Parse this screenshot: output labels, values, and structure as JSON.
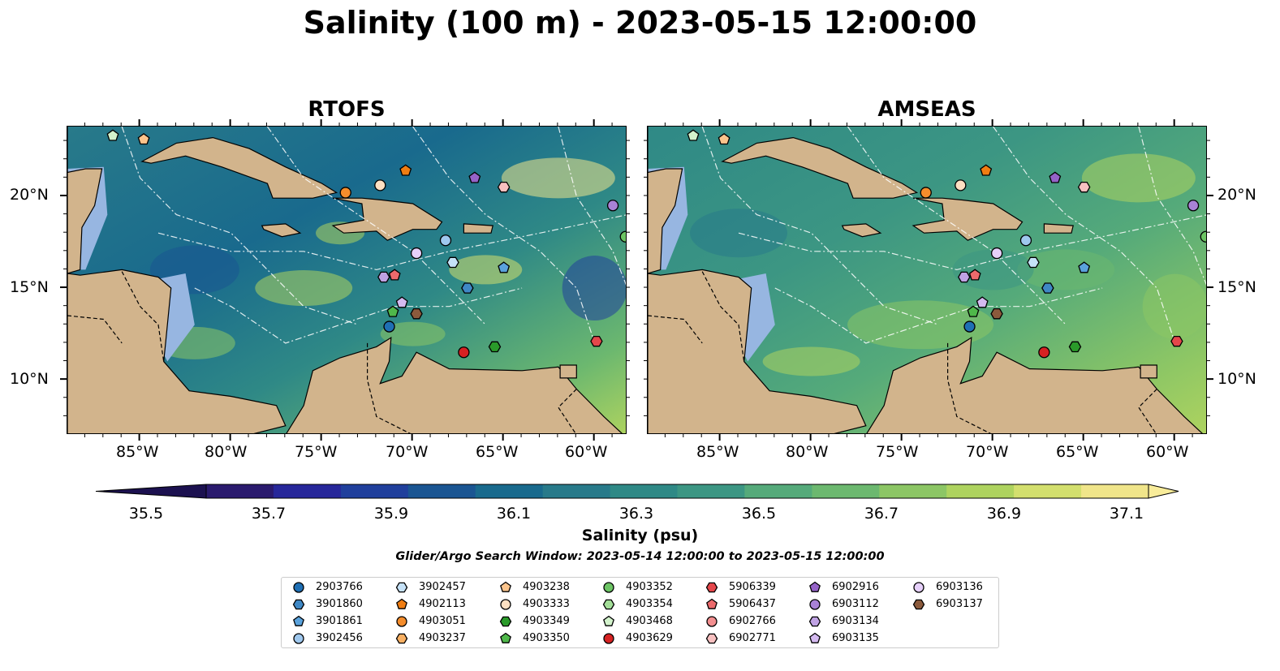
{
  "title": "Salinity (100 m) - 2023-05-15 12:00:00",
  "panels": [
    {
      "title": "RTOFS"
    },
    {
      "title": "AMSEAS"
    }
  ],
  "axes": {
    "lat_labels": [
      "20°N",
      "15°N",
      "10°N"
    ],
    "lon_labels": [
      "85°W",
      "80°W",
      "75°W",
      "70°W",
      "65°W",
      "60°W"
    ],
    "lat_range": [
      7.0,
      23.8
    ],
    "lon_range": [
      -89.0,
      -58.2
    ]
  },
  "colorbar": {
    "label": "Salinity (psu)",
    "ticks": [
      "35.5",
      "35.7",
      "35.9",
      "36.1",
      "36.3",
      "36.5",
      "36.7",
      "36.9",
      "37.1"
    ],
    "colors": [
      "#2a1a6e",
      "#27279a",
      "#203f9c",
      "#1a5592",
      "#196a8d",
      "#287a8a",
      "#2f8986",
      "#3c9683",
      "#55aa7a",
      "#6cb86f",
      "#8cc665",
      "#aed35f",
      "#d3df6e",
      "#f0e58a"
    ]
  },
  "search_window": "Glider/Argo Search Window: 2023-05-14 12:00:00 to 2023-05-15 12:00:00",
  "floats": [
    {
      "id": "2903766",
      "marker": "circle",
      "color": "#1f6fb4"
    },
    {
      "id": "3901860",
      "marker": "hexagon",
      "color": "#3f88c5"
    },
    {
      "id": "3901861",
      "marker": "pentagon",
      "color": "#5aa2dc"
    },
    {
      "id": "3902456",
      "marker": "circle",
      "color": "#9fc8ee"
    },
    {
      "id": "3902457",
      "marker": "hexagon",
      "color": "#c6e2f8"
    },
    {
      "id": "4902113",
      "marker": "pentagon",
      "color": "#f07d12"
    },
    {
      "id": "4903051",
      "marker": "circle",
      "color": "#f58d2c"
    },
    {
      "id": "4903237",
      "marker": "hexagon",
      "color": "#f9b063"
    },
    {
      "id": "4903238",
      "marker": "pentagon",
      "color": "#fbc48c"
    },
    {
      "id": "4903333",
      "marker": "circle",
      "color": "#fde0c2"
    },
    {
      "id": "4903349",
      "marker": "hexagon",
      "color": "#2a9a2a"
    },
    {
      "id": "4903350",
      "marker": "pentagon",
      "color": "#4fb84a"
    },
    {
      "id": "4903352",
      "marker": "circle",
      "color": "#6cc464"
    },
    {
      "id": "4903354",
      "marker": "hexagon",
      "color": "#a3de98"
    },
    {
      "id": "4903468",
      "marker": "pentagon",
      "color": "#d3f3cc"
    },
    {
      "id": "4903629",
      "marker": "circle",
      "color": "#d62222"
    },
    {
      "id": "5906339",
      "marker": "hexagon",
      "color": "#e4474b"
    },
    {
      "id": "5906437",
      "marker": "pentagon",
      "color": "#ec6a6c"
    },
    {
      "id": "6902766",
      "marker": "circle",
      "color": "#f38f90"
    },
    {
      "id": "6902771",
      "marker": "hexagon",
      "color": "#f8c0c0"
    },
    {
      "id": "6902916",
      "marker": "pentagon",
      "color": "#9563c8"
    },
    {
      "id": "6903112",
      "marker": "circle",
      "color": "#a982d6"
    },
    {
      "id": "6903134",
      "marker": "hexagon",
      "color": "#bfa2e3"
    },
    {
      "id": "6903135",
      "marker": "pentagon",
      "color": "#d4baf0"
    },
    {
      "id": "6903136",
      "marker": "circle",
      "color": "#e6d0fa"
    },
    {
      "id": "6903137",
      "marker": "hexagon",
      "color": "#8b5a3c"
    }
  ],
  "float_positions": [
    {
      "id": "4903468",
      "lon": -86.5,
      "lat": 23.3
    },
    {
      "id": "4903238",
      "lon": -84.8,
      "lat": 23.1
    },
    {
      "id": "4903051",
      "lon": -73.7,
      "lat": 20.2
    },
    {
      "id": "4903333",
      "lon": -71.8,
      "lat": 20.6
    },
    {
      "id": "4902113",
      "lon": -70.4,
      "lat": 21.4
    },
    {
      "id": "6902916",
      "lon": -66.6,
      "lat": 21.0
    },
    {
      "id": "6902771",
      "lon": -65.0,
      "lat": 20.5
    },
    {
      "id": "6903112",
      "lon": -59.0,
      "lat": 19.5
    },
    {
      "id": "3902456",
      "lon": -68.2,
      "lat": 17.6
    },
    {
      "id": "6903136",
      "lon": -69.8,
      "lat": 16.9
    },
    {
      "id": "3902457",
      "lon": -67.8,
      "lat": 16.4
    },
    {
      "id": "3901861",
      "lon": -65.0,
      "lat": 16.1
    },
    {
      "id": "6903134",
      "lon": -71.6,
      "lat": 15.6
    },
    {
      "id": "5906437",
      "lon": -71.0,
      "lat": 15.7
    },
    {
      "id": "3901860",
      "lon": -67.0,
      "lat": 15.0
    },
    {
      "id": "6903135",
      "lon": -70.6,
      "lat": 14.2
    },
    {
      "id": "4903350",
      "lon": -71.1,
      "lat": 13.7
    },
    {
      "id": "6903137",
      "lon": -69.8,
      "lat": 13.6
    },
    {
      "id": "2903766",
      "lon": -71.3,
      "lat": 12.9
    },
    {
      "id": "5906339",
      "lon": -59.9,
      "lat": 12.1
    },
    {
      "id": "4903629",
      "lon": -67.2,
      "lat": 11.5
    },
    {
      "id": "4903349",
      "lon": -65.5,
      "lat": 11.8
    },
    {
      "id": "4903352",
      "lon": -58.3,
      "lat": 17.8
    }
  ]
}
